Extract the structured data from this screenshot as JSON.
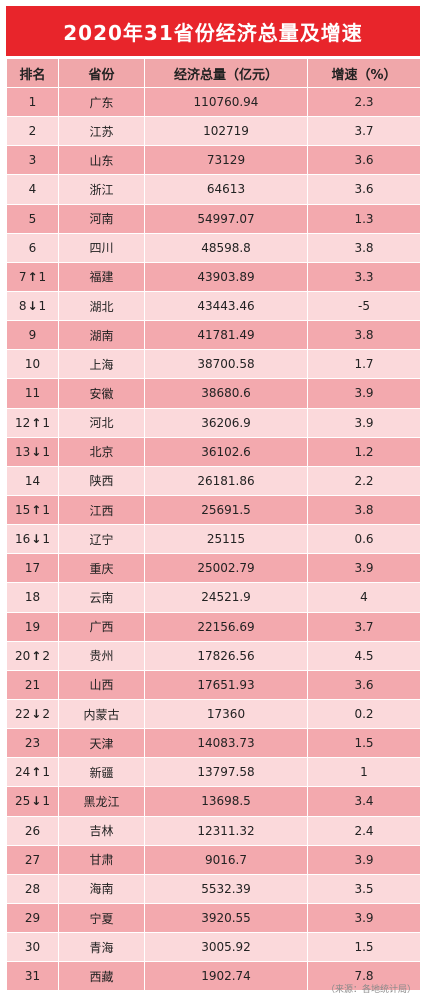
{
  "title": "2020年31省份经济总量及增速",
  "headers": [
    "排名",
    "省份",
    "经济总量（亿元）",
    "增速（%）"
  ],
  "rows": [
    {
      "rank": "1",
      "arrow": "",
      "change": "",
      "province": "广东",
      "gdp": "110760.94",
      "growth": "2.3"
    },
    {
      "rank": "2",
      "arrow": "",
      "change": "",
      "province": "江苏",
      "gdp": "102719",
      "growth": "3.7"
    },
    {
      "rank": "3",
      "arrow": "",
      "change": "",
      "province": "山东",
      "gdp": "73129",
      "growth": "3.6"
    },
    {
      "rank": "4",
      "arrow": "",
      "change": "",
      "province": "浙江",
      "gdp": "64613",
      "growth": "3.6"
    },
    {
      "rank": "5",
      "arrow": "",
      "change": "",
      "province": "河南",
      "gdp": "54997.07",
      "growth": "1.3"
    },
    {
      "rank": "6",
      "arrow": "",
      "change": "",
      "province": "四川",
      "gdp": "48598.8",
      "growth": "3.8"
    },
    {
      "rank": "7",
      "arrow": "↑",
      "change": "1",
      "province": "福建",
      "gdp": "43903.89",
      "growth": "3.3"
    },
    {
      "rank": "8",
      "arrow": "↓",
      "change": "1",
      "province": "湖北",
      "gdp": "43443.46",
      "growth": "-5"
    },
    {
      "rank": "9",
      "arrow": "",
      "change": "",
      "province": "湖南",
      "gdp": "41781.49",
      "growth": "3.8"
    },
    {
      "rank": "10",
      "arrow": "",
      "change": "",
      "province": "上海",
      "gdp": "38700.58",
      "growth": "1.7"
    },
    {
      "rank": "11",
      "arrow": "",
      "change": "",
      "province": "安徽",
      "gdp": "38680.6",
      "growth": "3.9"
    },
    {
      "rank": "12",
      "arrow": "↑",
      "change": "1",
      "province": "河北",
      "gdp": "36206.9",
      "growth": "3.9"
    },
    {
      "rank": "13",
      "arrow": "↓",
      "change": "1",
      "province": "北京",
      "gdp": "36102.6",
      "growth": "1.2"
    },
    {
      "rank": "14",
      "arrow": "",
      "change": "",
      "province": "陕西",
      "gdp": "26181.86",
      "growth": "2.2"
    },
    {
      "rank": "15",
      "arrow": "↑",
      "change": "1",
      "province": "江西",
      "gdp": "25691.5",
      "growth": "3.8"
    },
    {
      "rank": "16",
      "arrow": "↓",
      "change": "1",
      "province": "辽宁",
      "gdp": "25115",
      "growth": "0.6"
    },
    {
      "rank": "17",
      "arrow": "",
      "change": "",
      "province": "重庆",
      "gdp": "25002.79",
      "growth": "3.9"
    },
    {
      "rank": "18",
      "arrow": "",
      "change": "",
      "province": "云南",
      "gdp": "24521.9",
      "growth": "4"
    },
    {
      "rank": "19",
      "arrow": "",
      "change": "",
      "province": "广西",
      "gdp": "22156.69",
      "growth": "3.7"
    },
    {
      "rank": "20",
      "arrow": "↑",
      "change": "2",
      "province": "贵州",
      "gdp": "17826.56",
      "growth": "4.5"
    },
    {
      "rank": "21",
      "arrow": "",
      "change": "",
      "province": "山西",
      "gdp": "17651.93",
      "growth": "3.6"
    },
    {
      "rank": "22",
      "arrow": "↓",
      "change": "2",
      "province": "内蒙古",
      "gdp": "17360",
      "growth": "0.2"
    },
    {
      "rank": "23",
      "arrow": "",
      "change": "",
      "province": "天津",
      "gdp": "14083.73",
      "growth": "1.5"
    },
    {
      "rank": "24",
      "arrow": "↑",
      "change": "1",
      "province": "新疆",
      "gdp": "13797.58",
      "growth": "1"
    },
    {
      "rank": "25",
      "arrow": "↓",
      "change": "1",
      "province": "黑龙江",
      "gdp": "13698.5",
      "growth": "3.4"
    },
    {
      "rank": "26",
      "arrow": "",
      "change": "",
      "province": "吉林",
      "gdp": "12311.32",
      "growth": "2.4"
    },
    {
      "rank": "27",
      "arrow": "",
      "change": "",
      "province": "甘肃",
      "gdp": "9016.7",
      "growth": "3.9"
    },
    {
      "rank": "28",
      "arrow": "",
      "change": "",
      "province": "海南",
      "gdp": "5532.39",
      "growth": "3.5"
    },
    {
      "rank": "29",
      "arrow": "",
      "change": "",
      "province": "宁夏",
      "gdp": "3920.55",
      "growth": "3.9"
    },
    {
      "rank": "30",
      "arrow": "",
      "change": "",
      "province": "青海",
      "gdp": "3005.92",
      "growth": "1.5"
    },
    {
      "rank": "31",
      "arrow": "",
      "change": "",
      "province": "西藏",
      "gdp": "1902.74",
      "growth": "7.8"
    }
  ],
  "source": "（来源：各地统计局）",
  "colors": {
    "title_bg": "#e8252b",
    "row_dark": "#f3a9ae",
    "row_light": "#fbd9db",
    "header_bg": "#f0a7aa"
  }
}
